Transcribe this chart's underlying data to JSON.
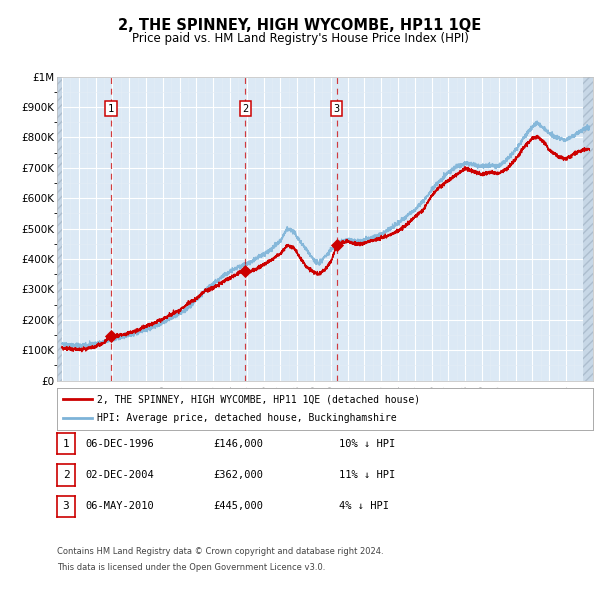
{
  "title": "2, THE SPINNEY, HIGH WYCOMBE, HP11 1QE",
  "subtitle": "Price paid vs. HM Land Registry's House Price Index (HPI)",
  "footer1": "Contains HM Land Registry data © Crown copyright and database right 2024.",
  "footer2": "This data is licensed under the Open Government Licence v3.0.",
  "legend_red": "2, THE SPINNEY, HIGH WYCOMBE, HP11 1QE (detached house)",
  "legend_blue": "HPI: Average price, detached house, Buckinghamshire",
  "sale_points": [
    {
      "label": "1",
      "date": "06-DEC-1996",
      "price": 146000,
      "pct": "10%",
      "dir": "↓",
      "year_x": 1996.92
    },
    {
      "label": "2",
      "date": "02-DEC-2004",
      "price": 362000,
      "pct": "11%",
      "dir": "↓",
      "year_x": 2004.92
    },
    {
      "label": "3",
      "date": "06-MAY-2010",
      "price": 445000,
      "pct": "4%",
      "dir": "↓",
      "year_x": 2010.35
    }
  ],
  "yticks": [
    0,
    100000,
    200000,
    300000,
    400000,
    500000,
    600000,
    700000,
    800000,
    900000,
    1000000
  ],
  "xlim_start": 1993.7,
  "xlim_end": 2025.6,
  "background_color": "#dce9f5",
  "red_color": "#cc0000",
  "blue_color": "#7db3d8",
  "hatch_color": "#c5d5e5",
  "grid_color": "#ffffff"
}
